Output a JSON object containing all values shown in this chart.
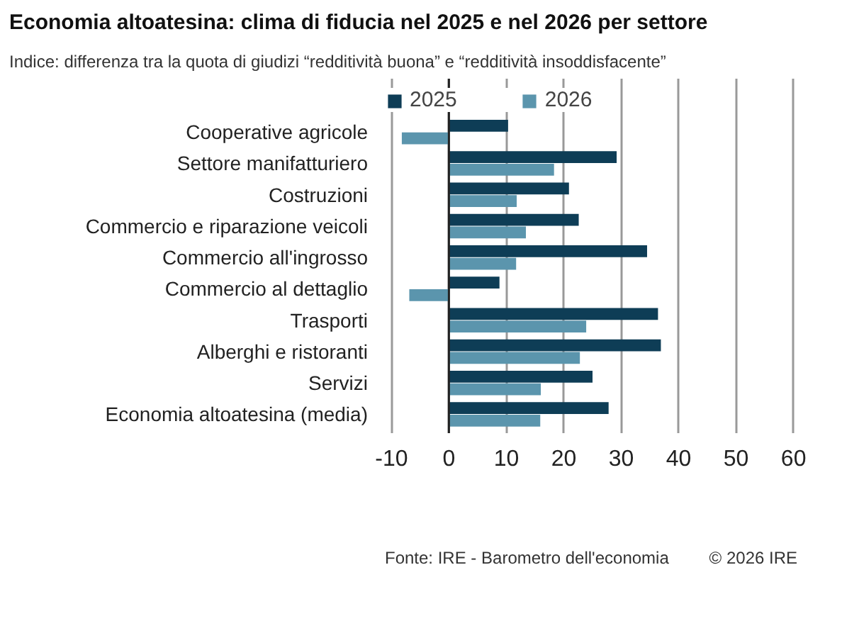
{
  "chart_data": {
    "type": "bar",
    "orientation": "horizontal",
    "title": "Economia altoatesina: clima di fiducia nel 2025 e nel 2026 per settore",
    "subtitle": "Indice: differenza tra la quota di giudizi “redditività buona” e “redditività insoddisfacente”",
    "categories": [
      "Cooperative agricole",
      "Settore manifatturiero",
      "Costruzioni",
      "Commercio e riparazione veicoli",
      "Commercio all'ingrosso",
      "Commercio al dettaglio",
      "Trasporti",
      "Alberghi e ristoranti",
      "Servizi",
      "Economia altoatesina (media)"
    ],
    "series": [
      {
        "name": "2025",
        "color": "#0e3d56",
        "values": [
          10.3,
          29.2,
          20.9,
          22.6,
          34.5,
          8.8,
          36.4,
          36.9,
          25.0,
          27.8
        ]
      },
      {
        "name": "2026",
        "color": "#5b95ad",
        "values": [
          -8.2,
          18.3,
          11.8,
          13.4,
          11.7,
          -6.9,
          23.9,
          22.8,
          16.0,
          15.9
        ]
      }
    ],
    "xlim": [
      -10,
      60
    ],
    "xticks": [
      -10,
      0,
      10,
      20,
      30,
      40,
      50,
      60
    ],
    "grid": "x",
    "legend": "top",
    "annotations": [
      "Fonte: IRE - Barometro dell'economia",
      "© 2026 IRE"
    ]
  }
}
